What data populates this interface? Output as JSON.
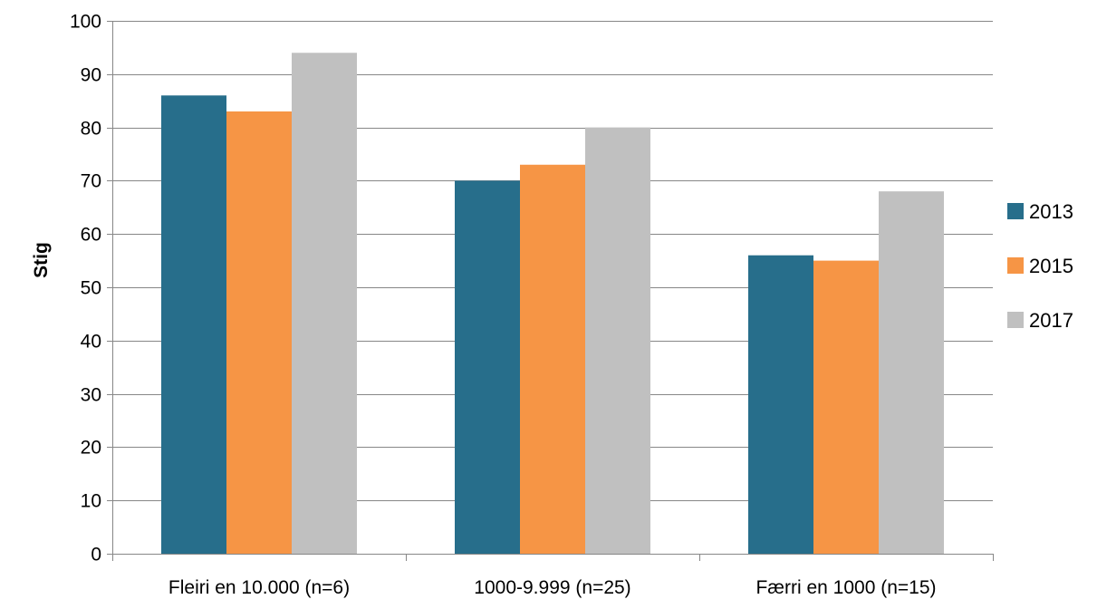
{
  "chart_data": {
    "type": "bar",
    "title": "",
    "xlabel": "",
    "ylabel": "Stig",
    "ylim": [
      0,
      100
    ],
    "yticks": [
      0,
      10,
      20,
      30,
      40,
      50,
      60,
      70,
      80,
      90,
      100
    ],
    "categories": [
      "Fleiri en 10.000 (n=6)",
      "1000-9.999 (n=25)",
      "Færri en 1000 (n=15)"
    ],
    "series": [
      {
        "name": "2013",
        "color": "#276E8B",
        "values": [
          86,
          70,
          56
        ]
      },
      {
        "name": "2015",
        "color": "#F69545",
        "values": [
          83,
          73,
          55
        ]
      },
      {
        "name": "2017",
        "color": "#C0C0C0",
        "values": [
          94,
          80,
          68
        ]
      }
    ],
    "grid": "horizontal",
    "legend_position": "right"
  }
}
